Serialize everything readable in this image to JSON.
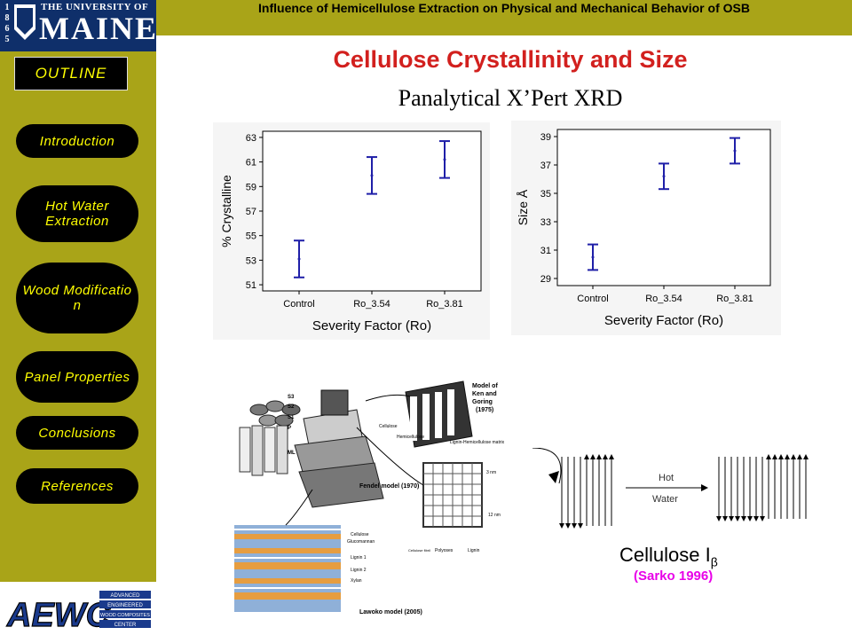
{
  "header": {
    "title": "Influence of Hemicellulose Extraction on Physical and Mechanical Behavior of OSB",
    "bar_color": "#a9a418"
  },
  "logo": {
    "year_digits": [
      "1",
      "8",
      "6",
      "5"
    ],
    "small_text": "THE UNIVERSITY OF",
    "big_text": "MAINE"
  },
  "sidebar": {
    "outline_label": "OUTLINE",
    "items": [
      {
        "label": "Introduction"
      },
      {
        "label": "Hot Water Extraction"
      },
      {
        "label": "Wood Modificatio n"
      },
      {
        "label": "Panel Properties"
      },
      {
        "label": "Conclusions"
      },
      {
        "label": "References"
      }
    ],
    "text_color": "#ffff00"
  },
  "slide": {
    "title": "Cellulose Crystallinity and Size",
    "subtitle": "Panalytical X’Pert XRD",
    "title_color": "#d2201e"
  },
  "chart_data": [
    {
      "type": "scatter",
      "xlabel": "Severity Factor (Ro)",
      "ylabel": "% Crystalline",
      "categories": [
        "Control",
        "Ro_3.54",
        "Ro_3.81"
      ],
      "ylim": [
        50.5,
        63.5
      ],
      "yticks": [
        51,
        53,
        55,
        57,
        59,
        61,
        63
      ],
      "series": [
        {
          "mean": [
            53.1,
            59.9,
            61.2
          ],
          "lower": [
            51.6,
            58.4,
            59.7
          ],
          "upper": [
            54.6,
            61.4,
            62.7
          ]
        }
      ],
      "error_color": "#1f1fa8"
    },
    {
      "type": "scatter",
      "xlabel": "Severity Factor (Ro)",
      "ylabel": "Size Å",
      "categories": [
        "Control",
        "Ro_3.54",
        "Ro_3.81"
      ],
      "ylim": [
        28.5,
        39.5
      ],
      "yticks": [
        29,
        31,
        33,
        35,
        37,
        39
      ],
      "series": [
        {
          "mean": [
            30.5,
            36.2,
            38.0
          ],
          "lower": [
            29.6,
            35.3,
            37.1
          ],
          "upper": [
            31.4,
            37.1,
            38.9
          ]
        }
      ],
      "error_color": "#1f1fa8"
    }
  ],
  "diagram": {
    "labels": {
      "s3": "S3",
      "s2": "S2",
      "s1": "S1",
      "p": "P",
      "ml": "ML",
      "ken_model": "Model of Ken and Goring (1975)",
      "cellulose_top": "Cellulose",
      "hemicellulose": "Hemicellulose",
      "lignin_matrix": "Lignin-Hemicellulose matrix",
      "fendel_model": "Fendel model (1970)",
      "nm3": "3 nm",
      "nm12": "12 nm",
      "cellulose_l": "Cellulose",
      "glucomannan": "Glucomannan",
      "lignin1": "Lignin 1",
      "lignin2": "Lignin 2",
      "xylan": "Xylan",
      "lawoko": "Lawoko model (2005)",
      "cellulose_fibril": "Cellulose fibril",
      "polyoses": "Polyoses",
      "lignin": "Lignin"
    },
    "hot_label": "Hot",
    "water_label": "Water",
    "cellulose_label": "Cellulose I",
    "cellulose_sub": "β",
    "reference": "(Sarko 1996)",
    "reference_color": "#e800e8"
  },
  "aewc": {
    "big": "AEWC",
    "lines": [
      "ADVANCED",
      "ENGINEERED",
      "WOOD COMPOSITES",
      "CENTER"
    ]
  }
}
